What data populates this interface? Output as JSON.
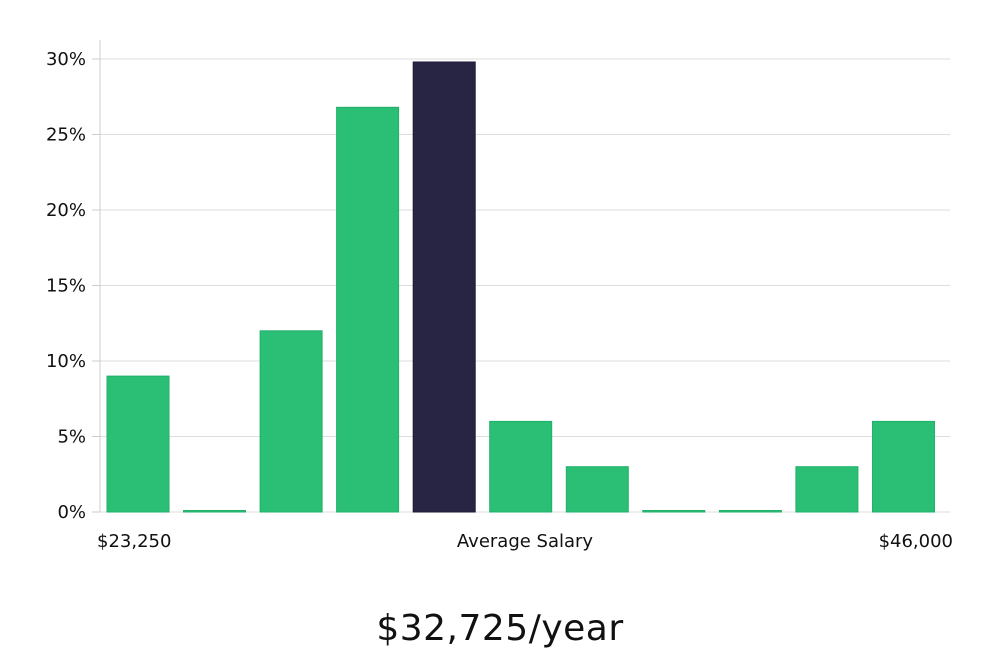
{
  "chart_data": {
    "type": "bar",
    "x_start_label": "$23,250",
    "x_center_label": "Average Salary",
    "x_end_label": "$46,000",
    "values": [
      9,
      0,
      12,
      26.8,
      29.8,
      6,
      3,
      0,
      0,
      3,
      6
    ],
    "highlight_index": 4,
    "y_ticks": [
      "0%",
      "5%",
      "10%",
      "15%",
      "20%",
      "25%",
      "30%"
    ],
    "ylim": [
      0,
      31
    ],
    "grid": true,
    "colors": {
      "bar": "#2bbf76",
      "bar_stroke": "#22b06a",
      "highlight": "#272444",
      "grid": "#dddddd",
      "axis": "#cccccc"
    }
  },
  "salary_headline": "$32,725/year"
}
